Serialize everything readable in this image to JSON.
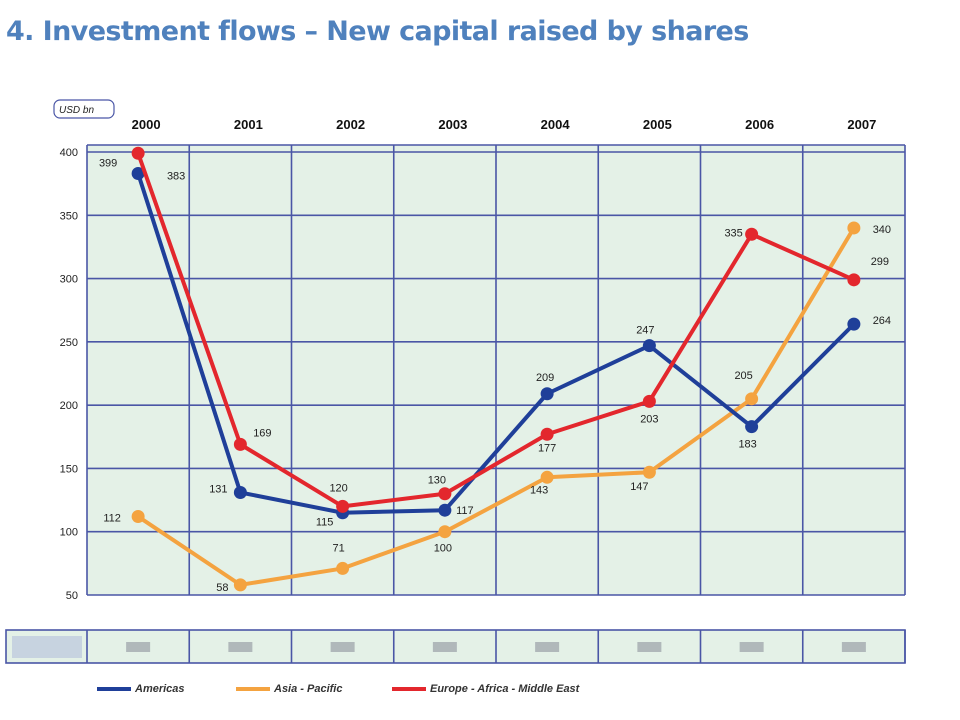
{
  "title": "4. Investment flows – New capital raised by shares",
  "colors": {
    "plot_bg": "#e4f1e7",
    "grid": "#4a56a6",
    "americas": "#1f3f99",
    "asia_pacific": "#f4a340",
    "emea": "#e3272d"
  },
  "chart_data": {
    "type": "line",
    "title": "",
    "unit_label": "USD bn",
    "xlabel": "",
    "ylabel": "USD bn",
    "x": [
      "2000",
      "2001",
      "2002",
      "2003",
      "2004",
      "2005",
      "2006",
      "2007"
    ],
    "ylim": [
      50,
      400
    ],
    "yticks": [
      50,
      100,
      150,
      200,
      250,
      300,
      350,
      400
    ],
    "grid": true,
    "legend_position": "bottom",
    "series": [
      {
        "name": "Americas",
        "color": "#1f3f99",
        "values": [
          383,
          131,
          115,
          117,
          209,
          247,
          183,
          264
        ],
        "labels": [
          "383",
          "131",
          "115",
          "117",
          "209",
          "247",
          "183",
          "264"
        ]
      },
      {
        "name": "Asia - Pacific",
        "color": "#f4a340",
        "values": [
          112,
          58,
          71,
          100,
          143,
          147,
          205,
          340
        ],
        "labels": [
          "112",
          "58",
          "71",
          "100",
          "143",
          "147",
          "205",
          "340"
        ]
      },
      {
        "name": "Europe - Africa - Middle East",
        "color": "#e3272d",
        "values": [
          399,
          169,
          120,
          130,
          177,
          203,
          335,
          299
        ],
        "labels": [
          "399",
          "169",
          "120",
          "130",
          "177",
          "203",
          "335",
          "299"
        ]
      }
    ]
  }
}
